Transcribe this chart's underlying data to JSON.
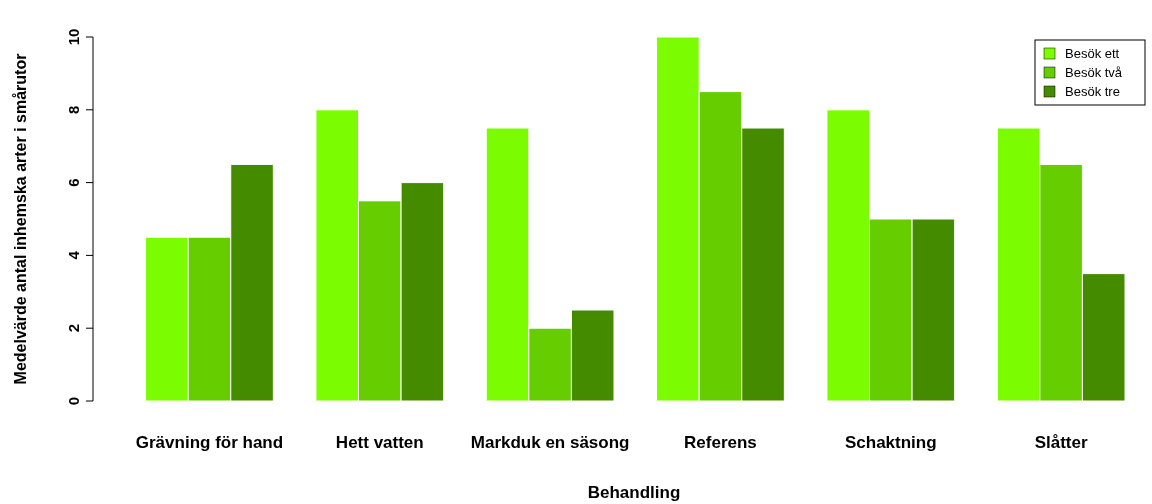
{
  "chart_data": {
    "type": "bar",
    "xlabel": "Behandling",
    "ylabel": "Medelvärde antal inhemska arter i smårutor",
    "categories": [
      "Grävning för hand",
      "Hett vatten",
      "Markduk en säsong",
      "Referens",
      "Schaktning",
      "Slåtter"
    ],
    "series": [
      {
        "name": "Besök ett",
        "color": "#7cfc00",
        "values": [
          4.5,
          8,
          7.5,
          10,
          8,
          7.5
        ]
      },
      {
        "name": "Besök två",
        "color": "#66cd00",
        "values": [
          4.5,
          5.5,
          2,
          8.5,
          5,
          6.5
        ]
      },
      {
        "name": "Besök tre",
        "color": "#458b00",
        "values": [
          6.5,
          6,
          2.5,
          7.5,
          5,
          3.5
        ]
      }
    ],
    "ylim": [
      0,
      10
    ],
    "yticks": [
      0,
      2,
      4,
      6,
      8,
      10
    ],
    "grid": false,
    "legend": "top right"
  }
}
